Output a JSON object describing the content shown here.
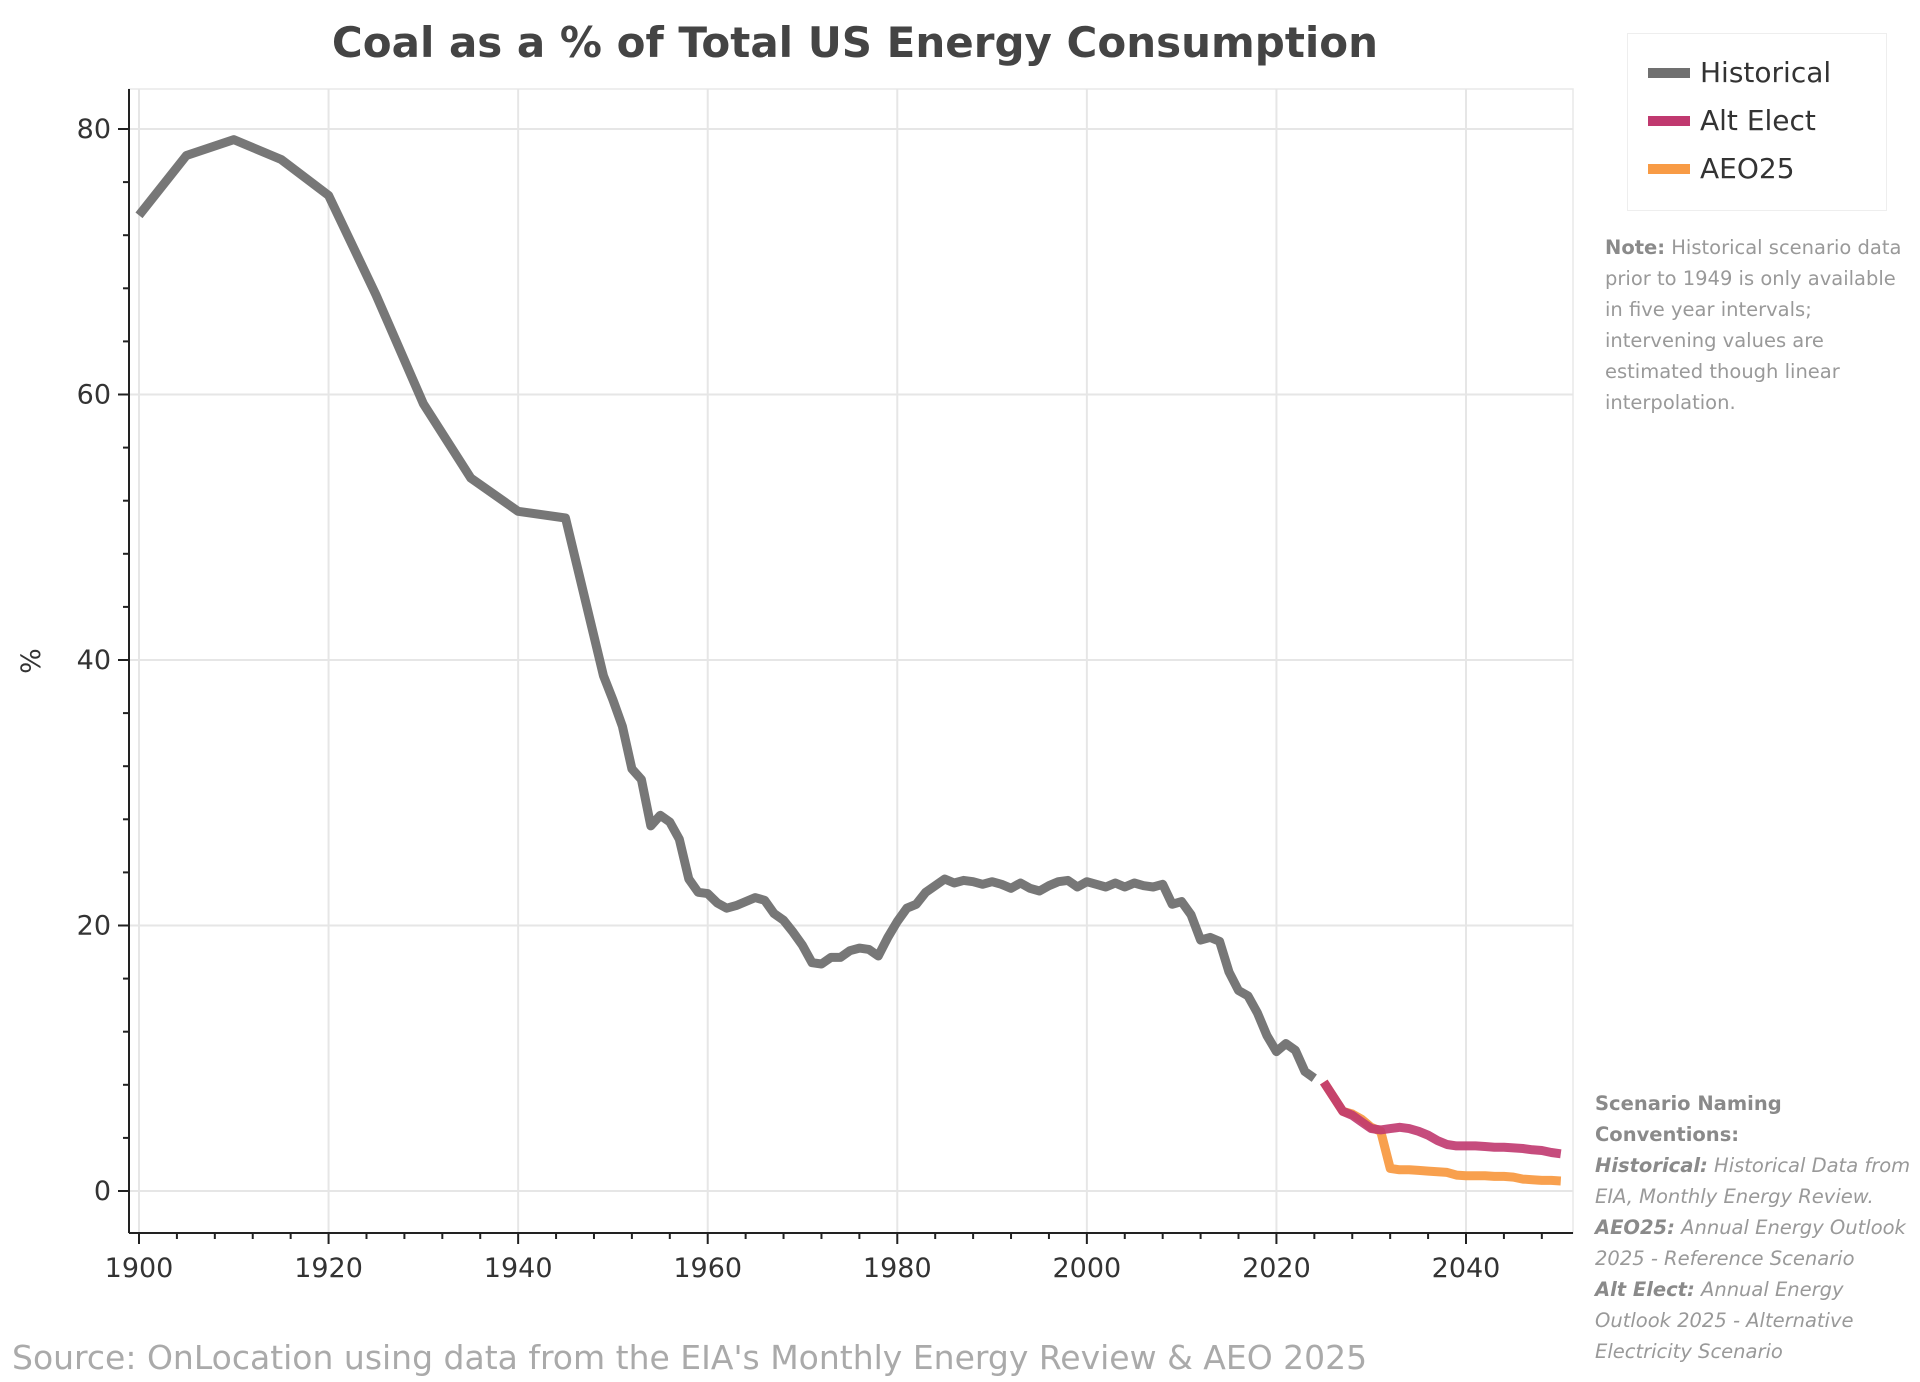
{
  "chart_data": {
    "type": "line",
    "title": "Coal as a % of Total US Energy Consumption",
    "xlabel": "",
    "ylabel": "%",
    "xlim": [
      1899,
      2051
    ],
    "ylim": [
      -3.2,
      83.5
    ],
    "xticks": [
      1900,
      1920,
      1940,
      1960,
      1980,
      2000,
      2020,
      2040
    ],
    "yticks": [
      0,
      20,
      40,
      60,
      80
    ],
    "grid": true,
    "legend_position": "top-right (outside plot)",
    "series": [
      {
        "name": "Historical",
        "color": "#707070",
        "x": [
          1900,
          1905,
          1910,
          1915,
          1920,
          1925,
          1930,
          1935,
          1940,
          1945,
          1949,
          1950,
          1951,
          1952,
          1953,
          1954,
          1955,
          1956,
          1957,
          1958,
          1959,
          1960,
          1961,
          1962,
          1963,
          1964,
          1965,
          1966,
          1967,
          1968,
          1969,
          1970,
          1971,
          1972,
          1973,
          1974,
          1975,
          1976,
          1977,
          1978,
          1979,
          1980,
          1981,
          1982,
          1983,
          1984,
          1985,
          1986,
          1987,
          1988,
          1989,
          1990,
          1991,
          1992,
          1993,
          1994,
          1995,
          1996,
          1997,
          1998,
          1999,
          2000,
          2001,
          2002,
          2003,
          2004,
          2005,
          2006,
          2007,
          2008,
          2009,
          2010,
          2011,
          2012,
          2013,
          2014,
          2015,
          2016,
          2017,
          2018,
          2019,
          2020,
          2021,
          2022,
          2023,
          2024
        ],
        "y": [
          73.5,
          78,
          79.2,
          77.7,
          75,
          67.5,
          59.3,
          53.7,
          51.2,
          50.7,
          38.8,
          37,
          35,
          31.8,
          31,
          27.5,
          28.3,
          27.8,
          26.5,
          23.5,
          22.5,
          22.4,
          21.7,
          21.3,
          21.5,
          21.8,
          22.1,
          21.9,
          20.9,
          20.4,
          19.5,
          18.5,
          17.2,
          17.1,
          17.6,
          17.6,
          18.1,
          18.3,
          18.2,
          17.7,
          19.1,
          20.3,
          21.3,
          21.6,
          22.5,
          23.0,
          23.5,
          23.2,
          23.4,
          23.3,
          23.1,
          23.3,
          23.1,
          22.8,
          23.2,
          22.8,
          22.6,
          23.0,
          23.3,
          23.4,
          22.9,
          23.3,
          23.1,
          22.9,
          23.2,
          22.9,
          23.2,
          23.0,
          22.9,
          23.1,
          21.6,
          21.8,
          20.8,
          18.9,
          19.1,
          18.8,
          16.5,
          15.1,
          14.7,
          13.4,
          11.7,
          10.5,
          11.1,
          10.6,
          9.0,
          8.5
        ]
      },
      {
        "name": "Alt Elect",
        "color": "#c0396f",
        "x": [
          2025,
          2026,
          2027,
          2028,
          2029,
          2030,
          2031,
          2032,
          2033,
          2034,
          2035,
          2036,
          2037,
          2038,
          2039,
          2040,
          2041,
          2042,
          2043,
          2044,
          2045,
          2046,
          2047,
          2048,
          2049,
          2050
        ],
        "y": [
          8.2,
          7.1,
          6.0,
          5.7,
          5.2,
          4.7,
          4.6,
          4.7,
          4.8,
          4.7,
          4.5,
          4.2,
          3.8,
          3.5,
          3.4,
          3.4,
          3.4,
          3.35,
          3.3,
          3.3,
          3.25,
          3.2,
          3.1,
          3.05,
          2.9,
          2.8
        ]
      },
      {
        "name": "AEO25",
        "color": "#f89b45",
        "x": [
          2025,
          2026,
          2027,
          2028,
          2029,
          2030,
          2031,
          2032,
          2033,
          2034,
          2035,
          2036,
          2037,
          2038,
          2039,
          2040,
          2041,
          2042,
          2043,
          2044,
          2045,
          2046,
          2047,
          2048,
          2049,
          2050
        ],
        "y": [
          8.2,
          7.1,
          6.0,
          5.8,
          5.4,
          4.8,
          4.5,
          1.7,
          1.6,
          1.6,
          1.55,
          1.5,
          1.45,
          1.4,
          1.2,
          1.15,
          1.15,
          1.15,
          1.1,
          1.1,
          1.05,
          0.9,
          0.85,
          0.8,
          0.8,
          0.75
        ]
      }
    ]
  },
  "note": {
    "label": "Note:",
    "text": " Historical scenario data prior to 1949 is only available in five year intervals; intervening values are estimated though linear interpolation."
  },
  "conventions": {
    "heading": "Scenario Naming Conventions:",
    "items": [
      {
        "label": "Historical:",
        "text": " Historical Data from EIA, Monthly Energy Review."
      },
      {
        "label": "AEO25:",
        "text": " Annual Energy Outlook 2025 - Reference Scenario"
      },
      {
        "label": "Alt Elect:",
        "text": " Annual Energy Outlook 2025 - Alternative Electricity Scenario"
      }
    ]
  },
  "source": "Source: OnLocation using data from the EIA's Monthly Energy Review & AEO 2025"
}
